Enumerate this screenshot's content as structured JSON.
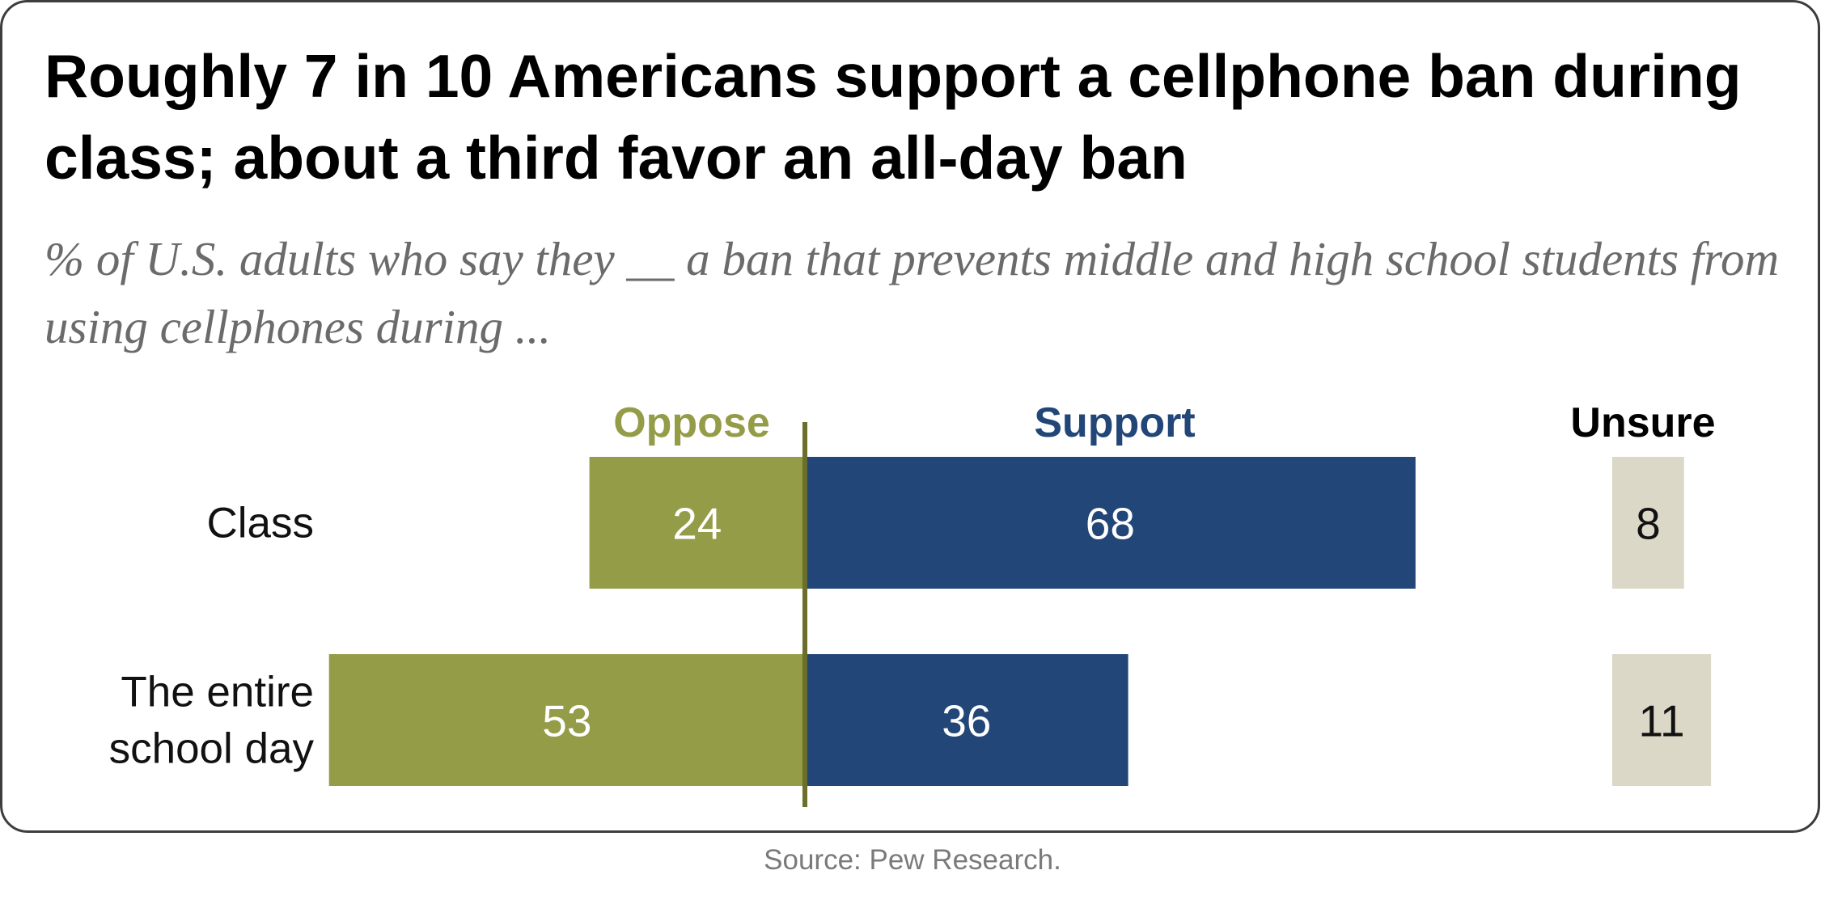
{
  "chart_data": {
    "type": "bar",
    "title": "Roughly 7 in 10 Americans support a cellphone ban during class; about a third favor an all-day ban",
    "subtitle": "% of U.S. adults who say they __ a ban that prevents middle and high school students from using cellphones during ...",
    "categories": [
      [
        "Class"
      ],
      [
        "The entire",
        "school day"
      ]
    ],
    "series": [
      {
        "name": "Oppose",
        "values": [
          24,
          53
        ],
        "color": "#949c48"
      },
      {
        "name": "Support",
        "values": [
          68,
          36
        ],
        "color": "#214677"
      },
      {
        "name": "Unsure",
        "values": [
          8,
          11
        ],
        "color": "#dcd8c8"
      }
    ],
    "header_colors": {
      "Oppose": "#949c48",
      "Support": "#214677",
      "Unsure": "#000000"
    },
    "source": "Source: Pew Research."
  }
}
